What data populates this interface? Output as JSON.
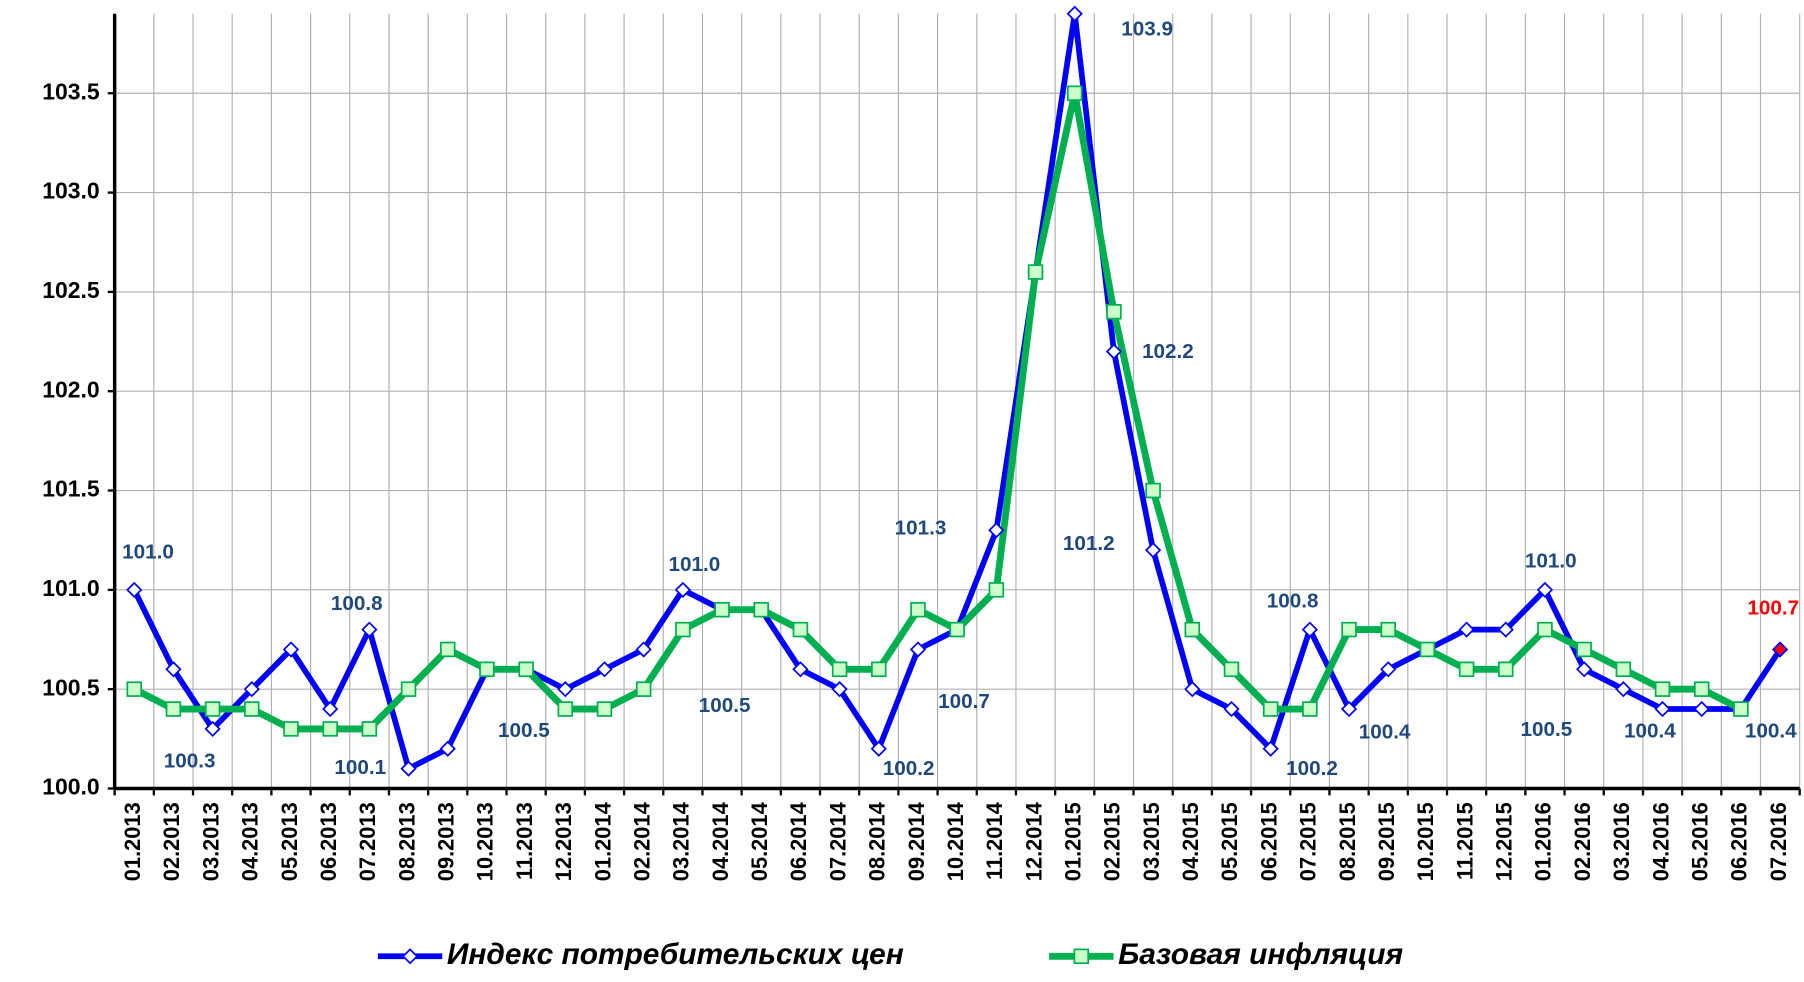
{
  "chart_data": {
    "type": "line",
    "categories": [
      "01.2013",
      "02.2013",
      "03.2013",
      "04.2013",
      "05.2013",
      "06.2013",
      "07.2013",
      "08.2013",
      "09.2013",
      "10.2013",
      "11.2013",
      "12.2013",
      "01.2014",
      "02.2014",
      "03.2014",
      "04.2014",
      "05.2014",
      "06.2014",
      "07.2014",
      "08.2014",
      "09.2014",
      "10.2014",
      "11.2014",
      "12.2014",
      "01.2015",
      "02.2015",
      "03.2015",
      "04.2015",
      "05.2015",
      "06.2015",
      "07.2015",
      "08.2015",
      "09.2015",
      "10.2015",
      "11.2015",
      "12.2015",
      "01.2016",
      "02.2016",
      "03.2016",
      "04.2016",
      "05.2016",
      "06.2016",
      "07.2016"
    ],
    "series": [
      {
        "name": "Индекс потребительских цен",
        "color": "#0000ff",
        "values": [
          101.0,
          100.6,
          100.3,
          100.5,
          100.7,
          100.4,
          100.8,
          100.1,
          100.2,
          100.6,
          100.6,
          100.5,
          100.6,
          100.7,
          101.0,
          100.9,
          100.9,
          100.6,
          100.5,
          100.2,
          100.7,
          100.8,
          101.3,
          102.6,
          103.9,
          102.2,
          101.2,
          100.5,
          100.4,
          100.2,
          100.8,
          100.4,
          100.6,
          100.7,
          100.8,
          100.8,
          101.0,
          100.6,
          100.5,
          100.4,
          100.4,
          100.4,
          100.7
        ],
        "value_labels": [
          "101.0",
          null,
          "100.3",
          null,
          null,
          null,
          "100.8",
          "100.1",
          null,
          null,
          null,
          "100.5",
          null,
          null,
          "101.0",
          null,
          null,
          null,
          "100.5",
          "100.2",
          "100.7",
          null,
          "101.3",
          null,
          "103.9",
          "102.2",
          "101.2",
          null,
          null,
          "100.2",
          "100.8",
          "100.4",
          null,
          null,
          null,
          null,
          "101.0",
          null,
          "100.5",
          "100.4",
          null,
          "100.4",
          "100.7"
        ],
        "value_label_colors": [
          "#1f497d",
          null,
          "#1f497d",
          null,
          null,
          null,
          "#1f497d",
          "#1f497d",
          null,
          null,
          null,
          "#1f497d",
          null,
          null,
          "#1f497d",
          null,
          null,
          null,
          "#1f497d",
          "#1f497d",
          "#1f497d",
          null,
          "#1f497d",
          null,
          "#1f497d",
          "#1f497d",
          "#1f497d",
          null,
          null,
          "#1f497d",
          "#1f497d",
          "#1f497d",
          null,
          null,
          null,
          null,
          "#1f497d",
          null,
          "#1f497d",
          "#1f497d",
          null,
          "#1f497d",
          "#ff0000"
        ]
      },
      {
        "name": "Базовая инфляция",
        "color": "#00b050",
        "values": [
          100.5,
          100.4,
          100.4,
          100.4,
          100.3,
          100.3,
          100.3,
          100.5,
          100.7,
          100.6,
          100.6,
          100.4,
          100.4,
          100.5,
          100.8,
          100.9,
          100.9,
          100.8,
          100.6,
          100.6,
          100.9,
          100.8,
          101.0,
          102.6,
          103.5,
          102.4,
          101.5,
          100.8,
          100.6,
          100.4,
          100.4,
          100.8,
          100.8,
          100.7,
          100.6,
          100.6,
          100.8,
          100.7,
          100.6,
          100.5,
          100.5,
          100.4,
          null
        ]
      }
    ],
    "ylim": [
      100,
      103.9
    ],
    "yticks": [
      {
        "value": 100,
        "label": "100.0"
      },
      100.5,
      {
        "value": 101,
        "label": "101.0"
      },
      101.5,
      {
        "value": 102,
        "label": "102.0"
      },
      102.5,
      {
        "value": 103,
        "label": "103.0"
      },
      103.5
    ],
    "grid": true,
    "legend": "bottom"
  }
}
